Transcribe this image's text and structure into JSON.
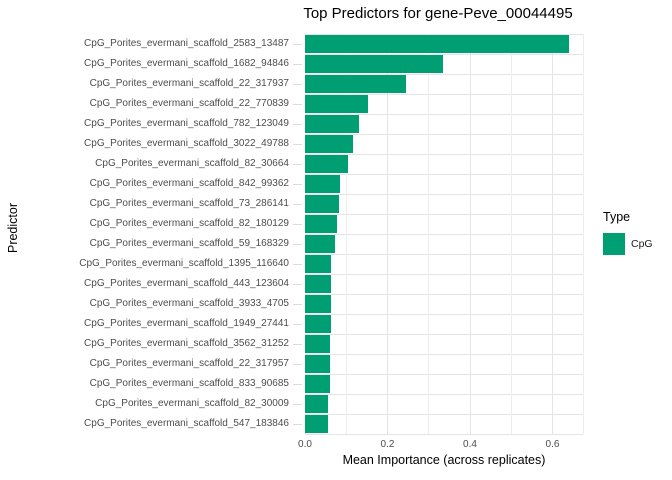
{
  "legend": {
    "title": "Type",
    "items": [
      {
        "label": "CpG",
        "color": "#009E73"
      }
    ]
  },
  "colors": {
    "bar": "#009E73",
    "grid_major": "#E4E4E4",
    "grid_minor": "#EDEDED",
    "tick_mark": "#DCDCDC",
    "axis_text": "#4D4D4D",
    "title_text": "#000000"
  },
  "chart_data": {
    "type": "bar",
    "orientation": "horizontal",
    "title": "Top Predictors for gene-Peve_00044495",
    "xlabel": "Mean Importance (across replicates)",
    "ylabel": "Predictor",
    "xlim": [
      0,
      0.674
    ],
    "x_major_ticks": [
      0,
      0.2,
      0.4,
      0.6
    ],
    "x_tick_labels": [
      "0.0",
      "0.2",
      "0.4",
      "0.6"
    ],
    "x_minor_gridlines": [
      0.1,
      0.3,
      0.5
    ],
    "grid": true,
    "legend_position": "right",
    "series": [
      {
        "name": "CpG",
        "color": "#009E73"
      }
    ],
    "categories": [
      "CpG_Porites_evermani_scaffold_2583_13487",
      "CpG_Porites_evermani_scaffold_1682_94846",
      "CpG_Porites_evermani_scaffold_22_317937",
      "CpG_Porites_evermani_scaffold_22_770839",
      "CpG_Porites_evermani_scaffold_782_123049",
      "CpG_Porites_evermani_scaffold_3022_49788",
      "CpG_Porites_evermani_scaffold_82_30664",
      "CpG_Porites_evermani_scaffold_842_99362",
      "CpG_Porites_evermani_scaffold_73_286141",
      "CpG_Porites_evermani_scaffold_82_180129",
      "CpG_Porites_evermani_scaffold_59_168329",
      "CpG_Porites_evermani_scaffold_1395_116640",
      "CpG_Porites_evermani_scaffold_443_123604",
      "CpG_Porites_evermani_scaffold_3933_4705",
      "CpG_Porites_evermani_scaffold_1949_27441",
      "CpG_Porites_evermani_scaffold_3562_31252",
      "CpG_Porites_evermani_scaffold_22_317957",
      "CpG_Porites_evermani_scaffold_833_90685",
      "CpG_Porites_evermani_scaffold_82_30009",
      "CpG_Porites_evermani_scaffold_547_183846"
    ],
    "values": [
      0.64,
      0.335,
      0.245,
      0.153,
      0.13,
      0.117,
      0.104,
      0.086,
      0.083,
      0.077,
      0.072,
      0.064,
      0.064,
      0.063,
      0.063,
      0.06,
      0.06,
      0.06,
      0.056,
      0.056
    ]
  }
}
